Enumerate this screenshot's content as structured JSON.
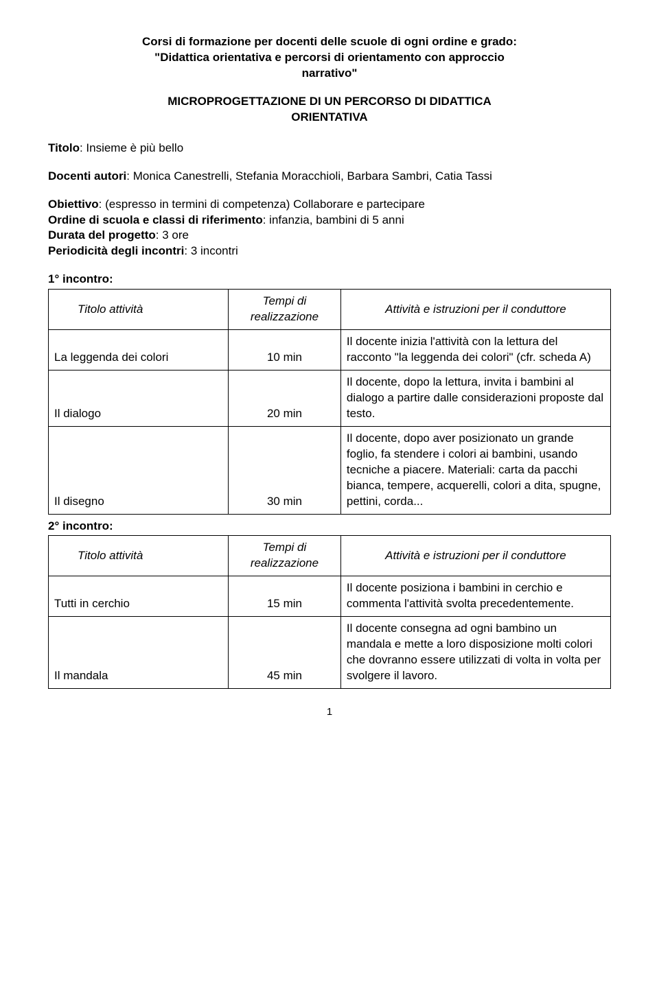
{
  "header": {
    "line1": "Corsi di formazione per docenti delle scuole di ogni ordine e grado:",
    "line2": "\"Didattica orientativa e percorsi di orientamento con approccio",
    "line3": "narrativo\"",
    "sub1": "MICROPROGETTAZIONE DI UN PERCORSO DI DIDATTICA",
    "sub2": "ORIENTATIVA"
  },
  "titolo": {
    "label": "Titolo",
    "value": ": Insieme è più bello"
  },
  "docenti": {
    "label": "Docenti autori",
    "value": ": Monica Canestrelli, Stefania Moracchioli, Barbara Sambri, Catia Tassi"
  },
  "obiettivo": {
    "label": "Obiettivo",
    "value": ": (espresso in termini di competenza) Collaborare e partecipare"
  },
  "ordine": {
    "label": "Ordine di scuola e classi di riferimento",
    "value": ": infanzia, bambini di 5 anni"
  },
  "durata": {
    "label": "Durata del progetto",
    "value": ": 3 ore"
  },
  "periodicita": {
    "label": "Periodicità degli incontri",
    "value": ": 3 incontri"
  },
  "incontro1": {
    "heading": "1° incontro:",
    "col1_header": "Titolo attività",
    "col2_header": "Tempi di realizzazione",
    "col3_header": "Attività e istruzioni per il conduttore",
    "rows": [
      {
        "titolo": "La leggenda dei colori",
        "tempo": "10 min",
        "attivita": "Il docente inizia l'attività con la lettura del racconto \"la leggenda dei colori\" (cfr. scheda A)"
      },
      {
        "titolo": "Il dialogo",
        "tempo": "20 min",
        "attivita": "Il docente, dopo la lettura, invita i bambini al dialogo a partire dalle considerazioni proposte dal testo."
      },
      {
        "titolo": "Il disegno",
        "tempo": "30 min",
        "attivita": "Il docente, dopo aver posizionato un grande foglio, fa stendere i colori ai bambini, usando tecniche a piacere. Materiali: carta da pacchi bianca, tempere, acquerelli, colori a dita, spugne, pettini, corda..."
      }
    ]
  },
  "incontro2": {
    "heading": "2° incontro:",
    "col1_header": "Titolo attività",
    "col2_header": "Tempi di realizzazione",
    "col3_header": "Attività e istruzioni per il conduttore",
    "rows": [
      {
        "titolo": "Tutti in cerchio",
        "tempo": "15 min",
        "attivita": "Il docente posiziona i bambini in cerchio e commenta l'attività svolta precedentemente."
      },
      {
        "titolo": "Il mandala",
        "tempo": "45 min",
        "attivita": "Il docente consegna ad ogni bambino un mandala e mette a loro disposizione molti colori che dovranno essere utilizzati di volta in volta per svolgere il lavoro."
      }
    ]
  },
  "page_number": "1"
}
